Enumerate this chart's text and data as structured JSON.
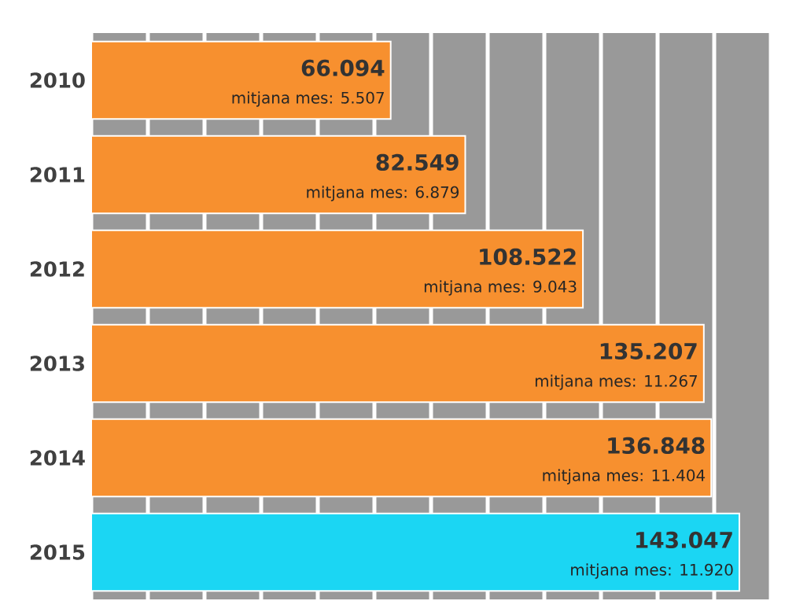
{
  "chart_data": {
    "type": "bar",
    "orientation": "horizontal",
    "categories": [
      "2010",
      "2011",
      "2012",
      "2013",
      "2014",
      "2015"
    ],
    "values": [
      66094,
      82549,
      108522,
      135207,
      136848,
      143047
    ],
    "colors": [
      "#f7902f",
      "#f7902f",
      "#f7902f",
      "#f7902f",
      "#f7902f",
      "#1bd6f3"
    ],
    "value_labels": [
      "66.094",
      "82.549",
      "108.522",
      "135.207",
      "136.848",
      "143.047"
    ],
    "annotations": [
      {
        "text": "mitjana mes: 5.507",
        "x": 66094,
        "y": "2010"
      },
      {
        "text": "mitjana mes: 6.879",
        "x": 82549,
        "y": "2011"
      },
      {
        "text": "mitjana mes: 9.043",
        "x": 108522,
        "y": "2012"
      },
      {
        "text": "mitjana mes: 11.267",
        "x": 135207,
        "y": "2013"
      },
      {
        "text": "mitjana mes: 11.404",
        "x": 136848,
        "y": "2014"
      },
      {
        "text": "mitjana mes: 11.920",
        "x": 143047,
        "y": "2015"
      }
    ],
    "xlim": [
      0,
      150000
    ],
    "xticks": [
      {
        "value": 0,
        "label": null
      },
      {
        "value": 12500,
        "label": null
      },
      {
        "value": 25000,
        "label": null
      },
      {
        "value": 37500,
        "label": null
      },
      {
        "value": 50000,
        "label": null
      },
      {
        "value": 62500,
        "label": null
      },
      {
        "value": 75000,
        "label": null
      },
      {
        "value": 87500,
        "label": null
      },
      {
        "value": 100000,
        "label": null
      },
      {
        "value": 112500,
        "label": null
      },
      {
        "value": 125000,
        "label": null
      },
      {
        "value": 137500,
        "label": null
      },
      {
        "value": 150000,
        "label": null
      }
    ],
    "grid": "x",
    "tick_labels": "y"
  }
}
